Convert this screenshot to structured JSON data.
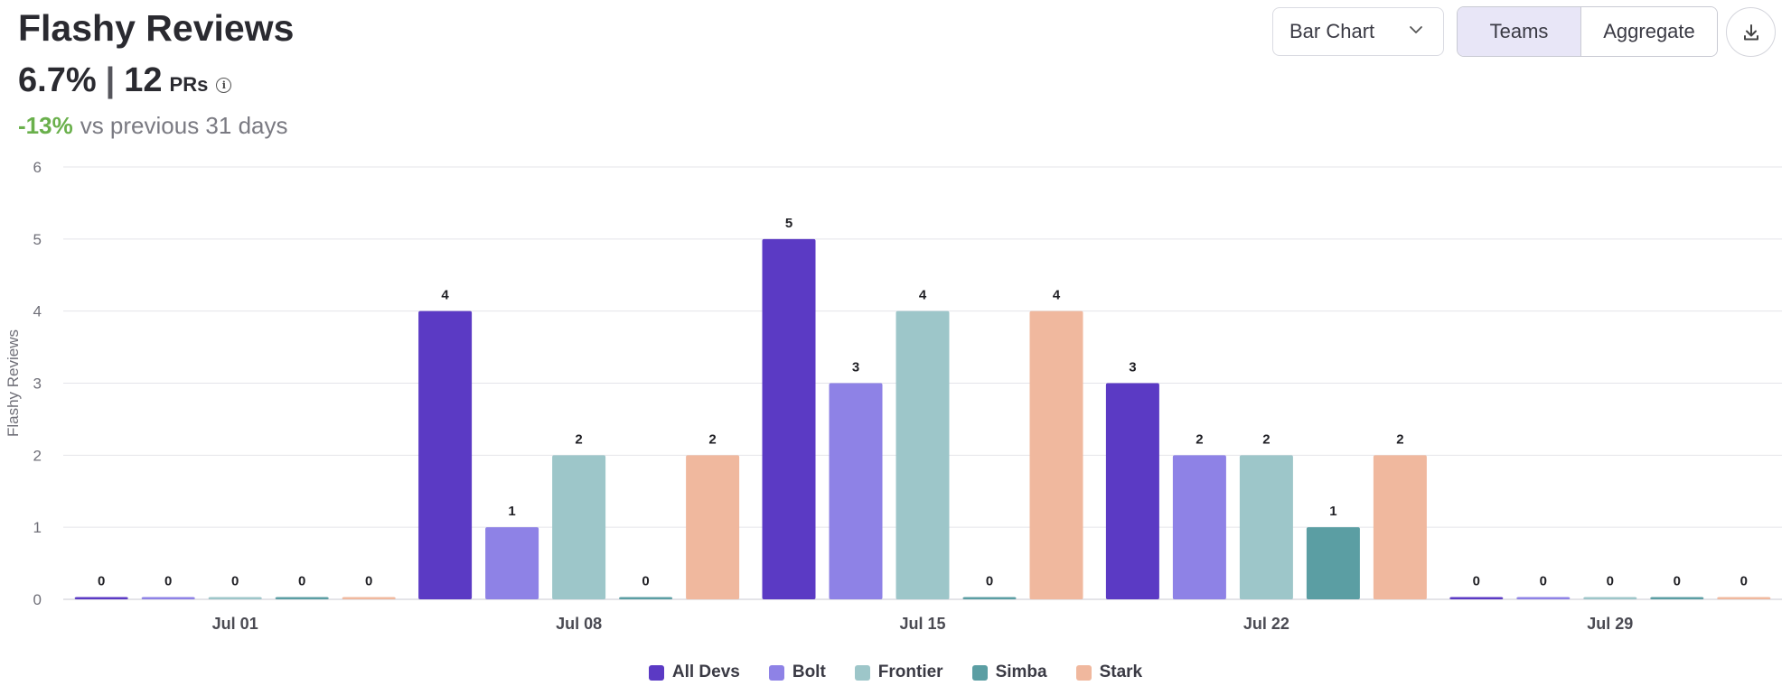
{
  "header": {
    "title": "Flashy Reviews",
    "metric_percent": "6.7%",
    "metric_separator": "|",
    "metric_count": "12",
    "metric_unit": "PRs",
    "info_symbol": "i",
    "delta_value": "-13%",
    "delta_text": "vs previous 31 days"
  },
  "controls": {
    "chart_type": "Bar Chart",
    "toggle_teams": "Teams",
    "toggle_aggregate": "Aggregate"
  },
  "chart_data": {
    "type": "bar",
    "title": "",
    "ylabel": "Flashy Reviews",
    "xlabel": "",
    "ylim": [
      0,
      6
    ],
    "yticks": [
      0,
      1,
      2,
      3,
      4,
      5,
      6
    ],
    "categories": [
      "Jul 01",
      "Jul 08",
      "Jul 15",
      "Jul 22",
      "Jul 29"
    ],
    "series": [
      {
        "name": "All Devs",
        "color": "#5b3ac4",
        "values": [
          0,
          4,
          5,
          3,
          0
        ]
      },
      {
        "name": "Bolt",
        "color": "#8e82e6",
        "values": [
          0,
          1,
          3,
          2,
          0
        ]
      },
      {
        "name": "Frontier",
        "color": "#9dc6c9",
        "values": [
          0,
          2,
          4,
          2,
          0
        ]
      },
      {
        "name": "Simba",
        "color": "#5b9ea3",
        "values": [
          0,
          0,
          0,
          1,
          0
        ]
      },
      {
        "name": "Stark",
        "color": "#f0b89e",
        "values": [
          0,
          2,
          4,
          2,
          0
        ]
      }
    ],
    "grid": true,
    "legend_position": "bottom-center"
  }
}
